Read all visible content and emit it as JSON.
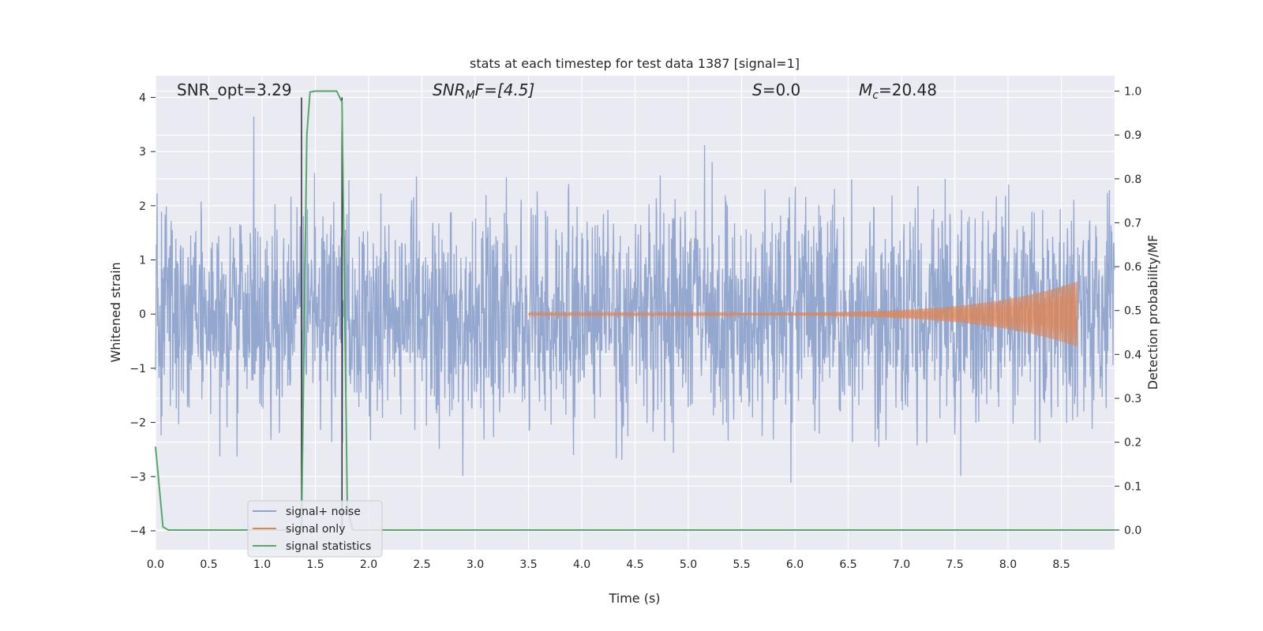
{
  "chart_data": {
    "type": "line",
    "title": "stats at each timestep for test data 1387 [signal=1]",
    "xlabel": "Time (s)",
    "ylabel": "Whitened strain",
    "ylabel_right": "Detection probability/MF",
    "xlim": [
      0.0,
      9.0
    ],
    "ylim": [
      -4.35,
      4.4
    ],
    "ylim_right": [
      -0.045,
      1.035
    ],
    "x_ticks": [
      "0.0",
      "0.5",
      "1.0",
      "1.5",
      "2.0",
      "2.5",
      "3.0",
      "3.5",
      "4.0",
      "4.5",
      "5.0",
      "5.5",
      "6.0",
      "6.5",
      "7.0",
      "7.5",
      "8.0",
      "8.5"
    ],
    "y_ticks": [
      "−4",
      "−3",
      "−2",
      "−1",
      "0",
      "1",
      "2",
      "3",
      "4"
    ],
    "y_ticks_right": [
      "0.0",
      "0.1",
      "0.2",
      "0.3",
      "0.4",
      "0.5",
      "0.6",
      "0.7",
      "0.8",
      "0.9",
      "1.0"
    ],
    "grid": true,
    "legend_position": "lower-left",
    "annotations": {
      "snr_opt": "SNR_opt=3.29",
      "snr_mf_main": "SNR",
      "snr_mf_sub": "M",
      "snr_mf_rest": "F=[4.5]",
      "s_main": "S",
      "s_rest": "=0.0",
      "mc_main": "M",
      "mc_sub": "c",
      "mc_rest": "=20.48"
    },
    "vertical_lines_x": [
      1.37,
      1.75
    ],
    "series": [
      {
        "name": "signal+ noise",
        "color": "#8fa3cc",
        "description_axis": "left",
        "noise_envelope": {
          "x_start": 0.0,
          "x_end": 9.0,
          "typical_amplitude": 1.4,
          "peak_max": 4.0,
          "peak_min": -3.85
        }
      },
      {
        "name": "signal only",
        "color": "#dd8452",
        "description_axis": "left",
        "chirp": {
          "x_start": 3.5,
          "x_end": 8.65,
          "amplitude_start": 0.02,
          "amplitude_end": 0.6
        }
      },
      {
        "name": "signal statistics",
        "color": "#55a868",
        "description_axis": "right",
        "x": [
          0.0,
          0.07,
          0.12,
          0.2,
          1.3,
          1.37,
          1.42,
          1.45,
          1.5,
          1.7,
          1.75,
          1.8,
          1.85,
          2.0,
          3.0,
          5.0,
          7.0,
          9.0
        ],
        "values": [
          0.19,
          0.007,
          0.0,
          0.0,
          0.0,
          0.0,
          0.9,
          0.998,
          1.0,
          1.0,
          0.975,
          0.05,
          0.0,
          0.0,
          0.0,
          0.0,
          0.0,
          0.0
        ]
      }
    ]
  }
}
